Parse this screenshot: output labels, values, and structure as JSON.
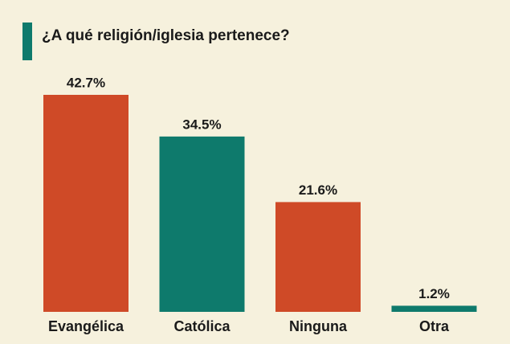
{
  "chart_data": {
    "type": "bar",
    "title": "¿A qué religión/iglesia pertenece?",
    "categories": [
      "Evangélica",
      "Católica",
      "Ninguna",
      "Otra"
    ],
    "values": [
      42.7,
      34.5,
      21.6,
      1.2
    ],
    "value_labels": [
      "42.7%",
      "34.5%",
      "21.6%",
      "1.2%"
    ],
    "colors": [
      "#cf4a27",
      "#0e7a6c",
      "#cf4a27",
      "#0e7a6c"
    ]
  }
}
